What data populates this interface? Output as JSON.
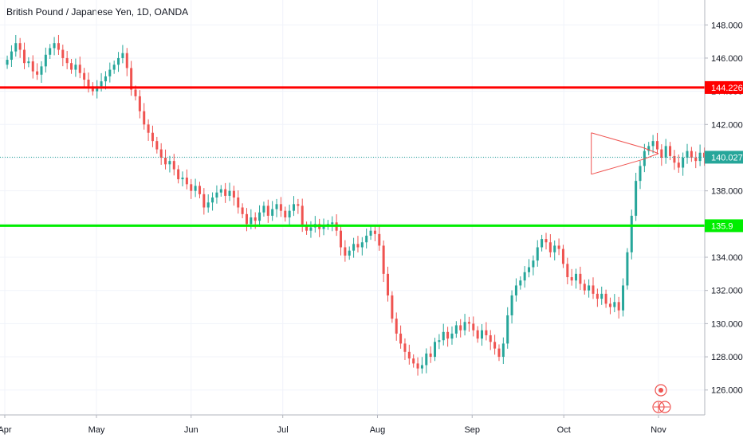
{
  "header": {
    "title": "British Pound / Japanese Yen, 1D, OANDA"
  },
  "chart_data": {
    "type": "candlestick",
    "title": "British Pound / Japanese Yen, 1D, OANDA",
    "ylim": [
      124.5,
      149.5
    ],
    "y_ticks": [
      126,
      128,
      130,
      132,
      134,
      136,
      138,
      140,
      142,
      144,
      146,
      148
    ],
    "y_tick_labels": [
      "126.000",
      "128.000",
      "130.000",
      "132.000",
      "134.000",
      "136.000",
      "138.000",
      "140.000",
      "142.000",
      "144.000",
      "146.000",
      "148.000"
    ],
    "x_ticks": [
      {
        "label": "Apr",
        "day": 0
      },
      {
        "label": "May",
        "day": 30
      },
      {
        "label": "Jun",
        "day": 61
      },
      {
        "label": "Jul",
        "day": 91
      },
      {
        "label": "Aug",
        "day": 122
      },
      {
        "label": "Sep",
        "day": 153
      },
      {
        "label": "Oct",
        "day": 183
      },
      {
        "label": "Nov",
        "day": 214
      }
    ],
    "grid": true,
    "colors": {
      "up": "#26a69a",
      "down": "#ef5350",
      "resistance": "#ff0000",
      "support": "#00ee00",
      "price_line": "#26a69a",
      "triangle": "#ef5350"
    },
    "horizontal_levels": [
      {
        "price": 144.226,
        "label": "144.226",
        "color": "#ff0000"
      },
      {
        "price": 135.9,
        "label": "135.9",
        "color": "#00ee00"
      },
      {
        "price": 140.027,
        "label": "140.027",
        "color": "#26a69a"
      }
    ],
    "triangle_pattern": {
      "upper": [
        [
          192,
          141.5
        ],
        [
          209,
          140.6
        ]
      ],
      "lower": [
        [
          192,
          139.0
        ],
        [
          209,
          139.9
        ]
      ],
      "apex_day": 214
    },
    "closes": [
      145.9,
      146.4,
      146.9,
      146.5,
      145.7,
      145.8,
      145.2,
      145.0,
      145.5,
      146.2,
      146.6,
      146.9,
      146.5,
      146.0,
      145.7,
      145.3,
      145.6,
      145.1,
      144.7,
      144.3,
      144.0,
      144.3,
      144.6,
      144.9,
      145.3,
      145.6,
      146.0,
      146.3,
      145.4,
      144.1,
      143.7,
      142.8,
      142.0,
      141.5,
      141.0,
      140.5,
      140.0,
      139.6,
      139.8,
      139.3,
      138.7,
      138.8,
      138.4,
      138.0,
      138.3,
      137.8,
      137.0,
      137.3,
      137.6,
      137.9,
      138.1,
      137.7,
      138.0,
      137.6,
      137.0,
      136.6,
      136.0,
      136.4,
      136.2,
      136.7,
      137.1,
      136.5,
      136.9,
      137.2,
      136.8,
      136.4,
      136.8,
      137.2,
      137.1,
      135.9,
      135.6,
      135.8,
      136.0,
      135.7,
      135.9,
      136.0,
      136.1,
      135.6,
      134.6,
      134.1,
      134.4,
      134.8,
      134.6,
      134.9,
      135.3,
      135.6,
      135.4,
      134.7,
      133.0,
      131.7,
      130.3,
      129.4,
      128.8,
      128.3,
      127.9,
      127.6,
      127.3,
      127.5,
      128.2,
      128.0,
      128.9,
      129.0,
      129.5,
      129.1,
      129.4,
      129.9,
      129.6,
      130.1,
      130.0,
      129.6,
      129.1,
      129.6,
      129.3,
      128.9,
      128.5,
      128.0,
      128.8,
      130.5,
      131.7,
      132.3,
      132.6,
      133.1,
      133.4,
      133.8,
      134.6,
      135.1,
      134.9,
      134.3,
      134.7,
      134.5,
      133.6,
      132.8,
      132.6,
      133.0,
      132.4,
      132.0,
      132.3,
      131.8,
      131.5,
      131.8,
      131.2,
      131.0,
      131.3,
      130.8,
      132.3,
      134.3,
      136.5,
      138.6,
      139.5,
      140.4,
      140.7,
      141.0,
      140.5,
      140.0,
      140.7,
      140.1,
      139.7,
      139.4,
      140.0,
      140.4,
      140.0,
      139.8,
      140.3,
      140.0
    ],
    "first_day_offset": 0.8,
    "days_per_candle": 1.4
  }
}
